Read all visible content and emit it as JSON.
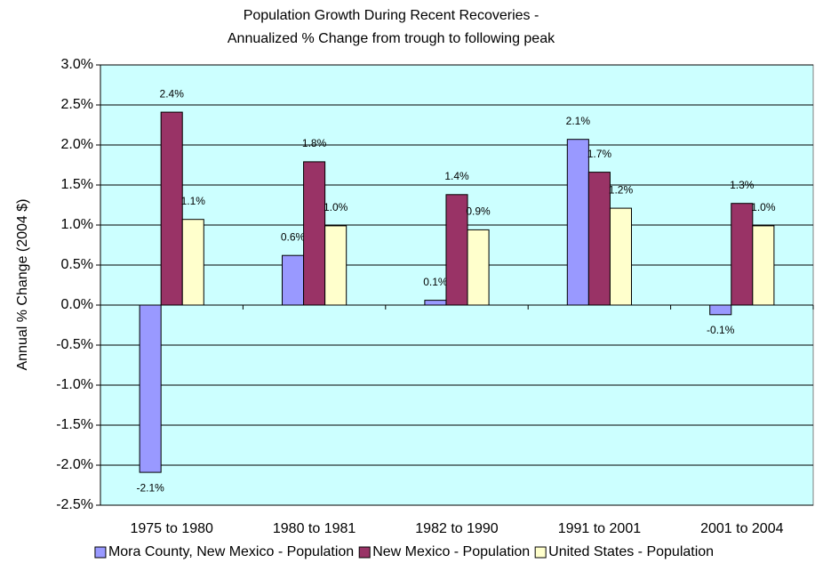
{
  "chart_data": {
    "type": "bar",
    "title": "Population Growth During Recent Recoveries -",
    "subtitle": "Annualized % Change from trough to following peak",
    "y_label": "Annual % Change (2004 $)",
    "categories": [
      "1975 to 1980",
      "1980 to 1981",
      "1982 to 1990",
      "1991 to 2001",
      "2001 to 2004"
    ],
    "series": [
      {
        "name": "Mora County, New Mexico - Population",
        "color": "#9999ff",
        "values": [
          -2.09,
          0.62,
          0.06,
          2.07,
          -0.12
        ],
        "value_labels": [
          "-2.1%",
          "0.6%",
          "0.1%",
          "2.1%",
          "-0.1%"
        ]
      },
      {
        "name": "New Mexico - Population",
        "color": "#993366",
        "values": [
          2.41,
          1.79,
          1.38,
          1.66,
          1.27
        ],
        "value_labels": [
          "2.4%",
          "1.8%",
          "1.4%",
          "1.7%",
          "1.3%"
        ]
      },
      {
        "name": "United States - Population",
        "color": "#ffffcc",
        "values": [
          1.07,
          0.99,
          0.94,
          1.21,
          0.99
        ],
        "value_labels": [
          "1.1%",
          "1.0%",
          "0.9%",
          "1.2%",
          "1.0%"
        ]
      }
    ],
    "ylim": [
      -2.5,
      3.0
    ],
    "yticks": [
      {
        "value": -2.5,
        "label": "-2.5%"
      },
      {
        "value": -2.0,
        "label": "-2.0%"
      },
      {
        "value": -1.5,
        "label": "-1.5%"
      },
      {
        "value": -1.0,
        "label": "-1.0%"
      },
      {
        "value": -0.5,
        "label": "-0.5%"
      },
      {
        "value": 0,
        "label": "0.0%"
      },
      {
        "value": 0.5,
        "label": "0.5%"
      },
      {
        "value": 1.0,
        "label": "1.0%"
      },
      {
        "value": 1.5,
        "label": "1.5%"
      },
      {
        "value": 2.0,
        "label": "2.0%"
      },
      {
        "value": 2.5,
        "label": "2.5%"
      },
      {
        "value": 3.0,
        "label": "3.0%"
      }
    ],
    "grid": true,
    "plot_background": "#ccffff",
    "legend": "bottom"
  }
}
